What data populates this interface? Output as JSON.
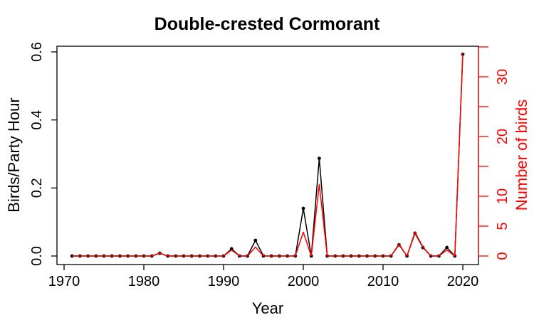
{
  "chart_data": {
    "type": "line",
    "title": "Double-crested Cormorant",
    "xlabel": "Year",
    "ylabel": "Birds/Party Hour",
    "y2label": "Number of birds",
    "xlim": [
      1970,
      2020
    ],
    "ylim": [
      0,
      0.6
    ],
    "y2lim": [
      0,
      35
    ],
    "xticks": [
      1970,
      1980,
      1990,
      2000,
      2010,
      2020
    ],
    "yticks": [
      0.0,
      0.2,
      0.4,
      0.6
    ],
    "ytick_labels": [
      "0.0",
      "0.2",
      "0.4",
      "0.6"
    ],
    "y2ticks": [
      0,
      5,
      10,
      15,
      20,
      25,
      30,
      35
    ],
    "y2tick_labels": [
      "0",
      "5",
      "10",
      "",
      "20",
      "",
      "30",
      ""
    ],
    "grid": false,
    "legend": "none",
    "x": [
      1971,
      1972,
      1973,
      1974,
      1975,
      1976,
      1977,
      1978,
      1979,
      1980,
      1981,
      1982,
      1983,
      1984,
      1985,
      1986,
      1987,
      1988,
      1989,
      1990,
      1991,
      1992,
      1993,
      1994,
      1995,
      1996,
      1997,
      1998,
      1999,
      2000,
      2001,
      2002,
      2003,
      2004,
      2005,
      2006,
      2007,
      2008,
      2009,
      2010,
      2011,
      2012,
      2013,
      2014,
      2015,
      2016,
      2017,
      2018,
      2019,
      2020
    ],
    "series": [
      {
        "axis": "left",
        "color": "#000000",
        "markers": true,
        "values": [
          0,
          0,
          0,
          0,
          0,
          0,
          0,
          0,
          0,
          0,
          0,
          0.008,
          0,
          0,
          0,
          0,
          0,
          0,
          0,
          0,
          0.021,
          0,
          0,
          0.046,
          0,
          0,
          0,
          0,
          0,
          0.14,
          0,
          0.287,
          0,
          0,
          0,
          0,
          0,
          0,
          0,
          0,
          0,
          0.033,
          0,
          0.067,
          0.025,
          0,
          0,
          0.025,
          0,
          0.593
        ]
      },
      {
        "axis": "right",
        "color": "#ff0000",
        "markers": false,
        "values": [
          0,
          0,
          0,
          0,
          0,
          0,
          0,
          0,
          0,
          0,
          0,
          0.5,
          0,
          0,
          0,
          0,
          0,
          0,
          0,
          0,
          1,
          0,
          0,
          1.5,
          0,
          0,
          0,
          0,
          0,
          4,
          0,
          12,
          0,
          0,
          0,
          0,
          0,
          0,
          0,
          0,
          0,
          2,
          0,
          4,
          1.5,
          0,
          0,
          1,
          0,
          34
        ]
      }
    ]
  }
}
